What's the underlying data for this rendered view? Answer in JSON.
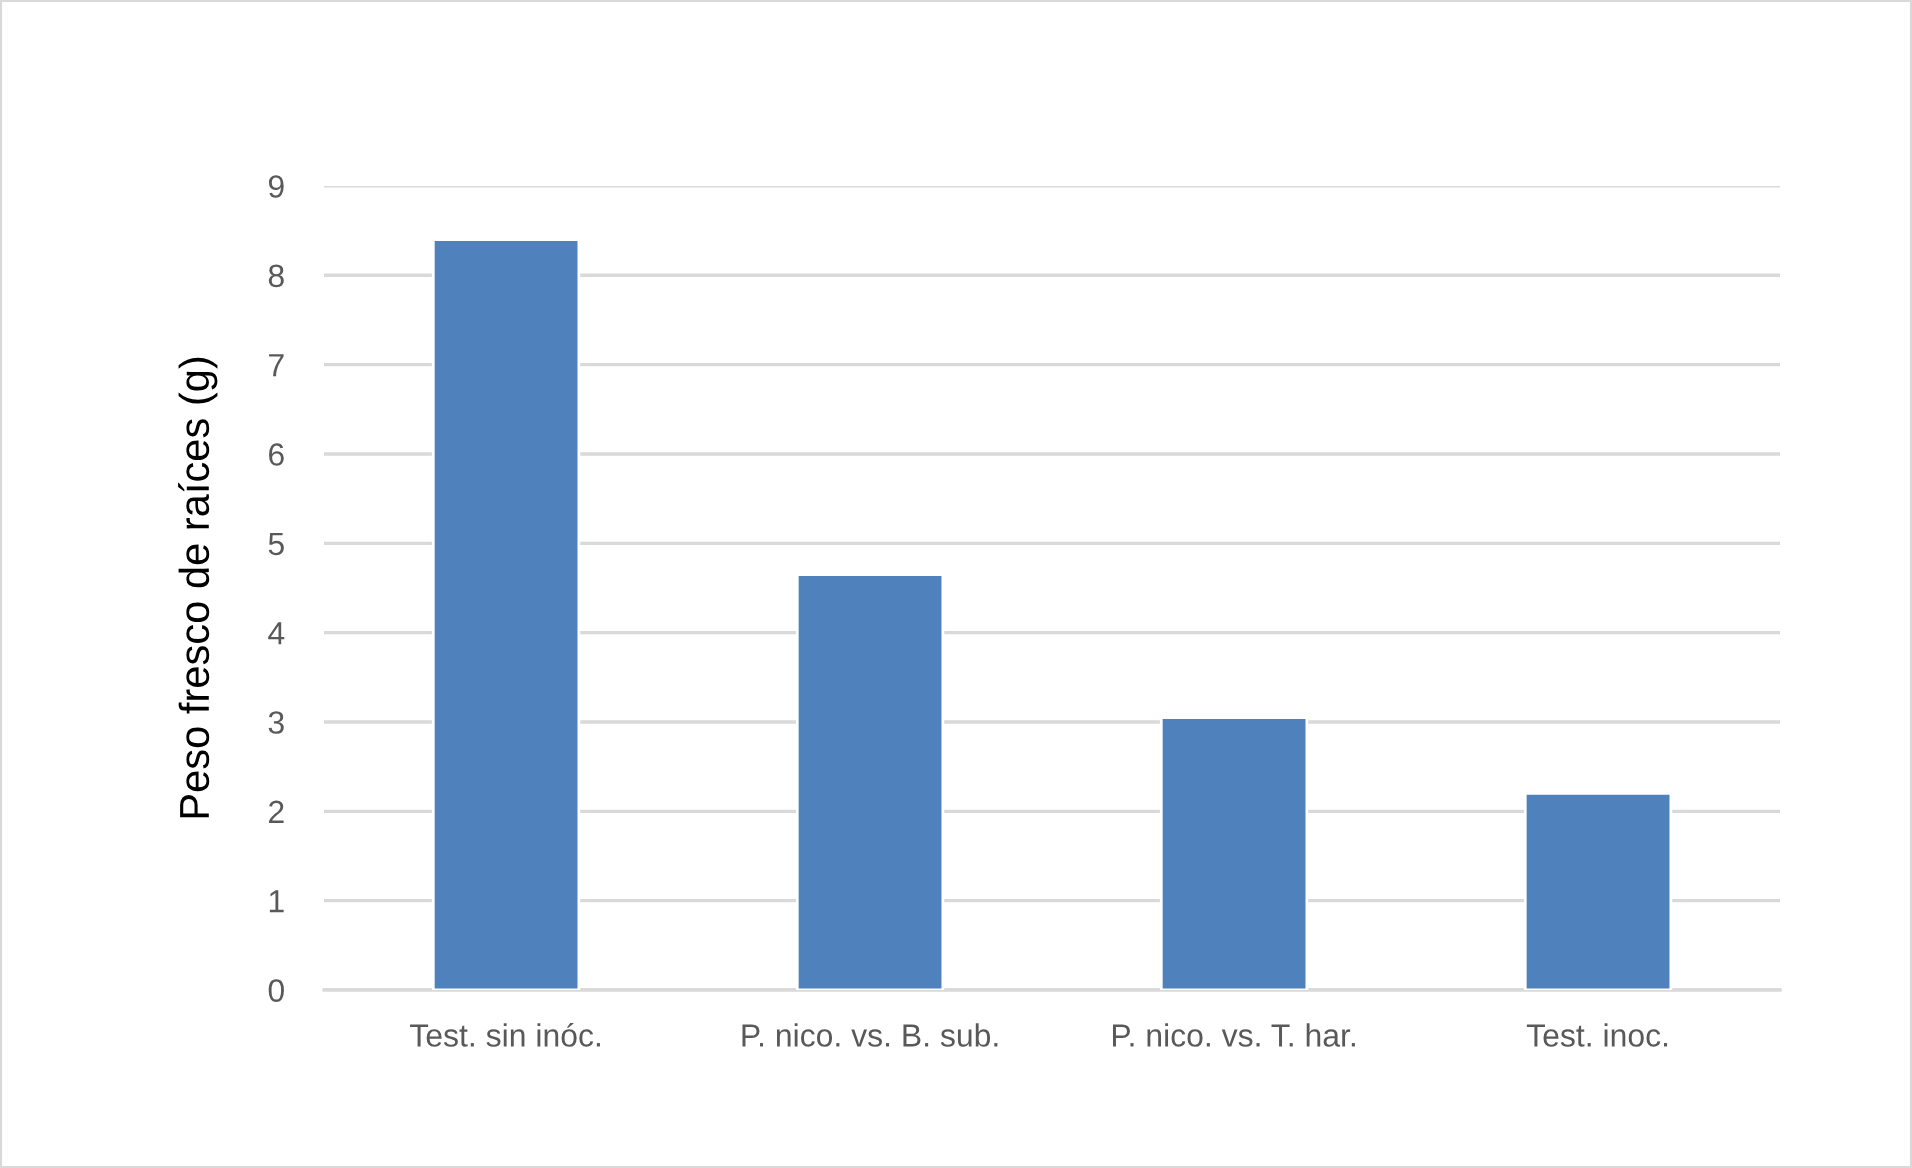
{
  "chart_data": {
    "type": "bar",
    "ylabel": "Peso fresco de raíces (g)",
    "categories": [
      "Test. sin inóc.",
      "P. nico. vs. B. sub.",
      "P. nico. vs. T. har.",
      "Test. inoc."
    ],
    "values": [
      8.4,
      4.65,
      3.05,
      2.2
    ],
    "color": "#4f81bd",
    "ylim": [
      0,
      9
    ],
    "yticks": [
      0,
      1,
      2,
      3,
      4,
      5,
      6,
      7,
      8,
      9
    ],
    "grid": "y"
  }
}
